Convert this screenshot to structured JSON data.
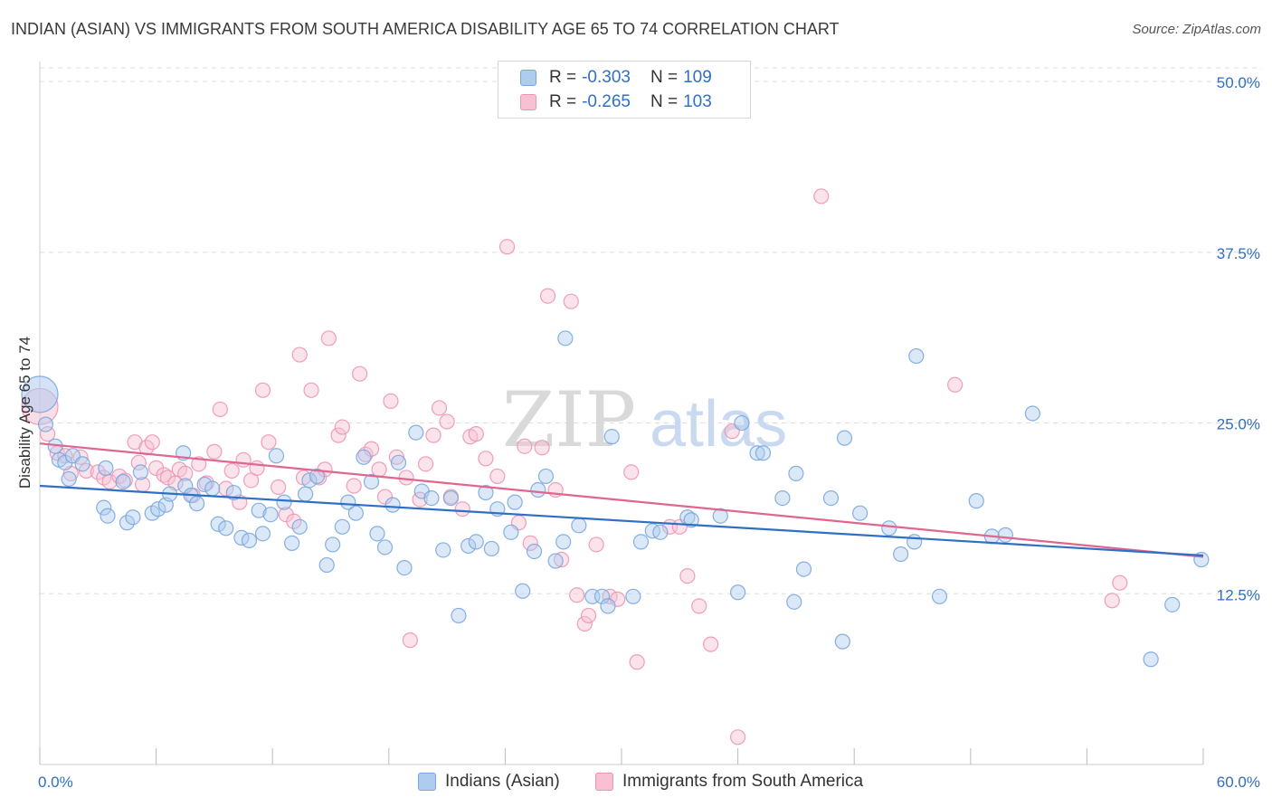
{
  "header": {
    "title": "INDIAN (ASIAN) VS IMMIGRANTS FROM SOUTH AMERICA DISABILITY AGE 65 TO 74 CORRELATION CHART",
    "source": "Source: ZipAtlas.com"
  },
  "legend": {
    "blue": {
      "r_label": "R =",
      "r_value": "-0.303",
      "n_label": "N =",
      "n_value": "109"
    },
    "pink": {
      "r_label": "R =",
      "r_value": "-0.265",
      "n_label": "N =",
      "n_value": "103"
    }
  },
  "bottom_legend": {
    "blue_label": "Indians (Asian)",
    "pink_label": "Immigrants from South America"
  },
  "watermark": {
    "zip": "ZIP",
    "atlas": "atlas"
  },
  "colors": {
    "blue_fill": "#aecbf0",
    "blue_stroke": "#7aa6dd",
    "blue_line": "#2f6fc4",
    "pink_fill": "#f7c1d3",
    "pink_stroke": "#ee93b3",
    "pink_line": "#e06690",
    "tick_label": "#2f6fc4",
    "grid": "#dddddd"
  },
  "chart_data": {
    "type": "scatter",
    "title": "INDIAN (ASIAN) VS IMMIGRANTS FROM SOUTH AMERICA DISABILITY AGE 65 TO 74 CORRELATION CHART",
    "xlabel": "",
    "ylabel": "Disability Age 65 to 74",
    "xlim": [
      0,
      60
    ],
    "ylim": [
      0,
      51
    ],
    "x_tick_labels": [
      "0.0%",
      "60.0%"
    ],
    "y_ticks": [
      12.5,
      25.0,
      37.5,
      50.0
    ],
    "y_tick_labels": [
      "12.5%",
      "25.0%",
      "37.5%",
      "50.0%"
    ],
    "grid": true,
    "legend_position": "top-center",
    "series": [
      {
        "name": "Indians (Asian)",
        "trend": {
          "x": [
            0,
            60
          ],
          "y": [
            20.4,
            15.3
          ]
        },
        "points": [
          [
            0,
            27.1
          ],
          [
            0.3,
            24.9
          ],
          [
            0.8,
            23.3
          ],
          [
            1.0,
            22.3
          ],
          [
            1.3,
            22.1
          ],
          [
            1.7,
            22.6
          ],
          [
            1.5,
            20.9
          ],
          [
            2.2,
            22.0
          ],
          [
            3.3,
            18.8
          ],
          [
            3.4,
            21.7
          ],
          [
            3.5,
            18.2
          ],
          [
            4.3,
            20.7
          ],
          [
            4.5,
            17.7
          ],
          [
            4.8,
            18.1
          ],
          [
            5.2,
            21.4
          ],
          [
            5.8,
            18.4
          ],
          [
            6.1,
            18.7
          ],
          [
            6.5,
            19.0
          ],
          [
            6.7,
            19.8
          ],
          [
            7.4,
            22.8
          ],
          [
            7.5,
            20.4
          ],
          [
            7.8,
            19.7
          ],
          [
            8.1,
            19.1
          ],
          [
            8.5,
            20.5
          ],
          [
            8.9,
            20.2
          ],
          [
            9.2,
            17.6
          ],
          [
            9.6,
            17.3
          ],
          [
            10.0,
            19.9
          ],
          [
            10.4,
            16.6
          ],
          [
            10.8,
            16.4
          ],
          [
            11.3,
            18.6
          ],
          [
            11.5,
            16.9
          ],
          [
            11.9,
            18.3
          ],
          [
            12.2,
            22.6
          ],
          [
            12.6,
            19.2
          ],
          [
            13.0,
            16.2
          ],
          [
            13.4,
            17.4
          ],
          [
            13.7,
            19.8
          ],
          [
            13.9,
            20.8
          ],
          [
            14.3,
            21.1
          ],
          [
            14.8,
            14.6
          ],
          [
            15.1,
            16.1
          ],
          [
            15.6,
            17.4
          ],
          [
            15.9,
            19.2
          ],
          [
            16.3,
            18.4
          ],
          [
            16.7,
            22.5
          ],
          [
            17.1,
            20.7
          ],
          [
            17.4,
            16.9
          ],
          [
            17.8,
            15.9
          ],
          [
            18.2,
            19.0
          ],
          [
            18.5,
            22.1
          ],
          [
            18.8,
            14.4
          ],
          [
            19.4,
            24.3
          ],
          [
            19.7,
            20.0
          ],
          [
            20.2,
            19.5
          ],
          [
            20.8,
            15.7
          ],
          [
            21.2,
            19.5
          ],
          [
            21.6,
            10.9
          ],
          [
            22.1,
            16.0
          ],
          [
            22.5,
            16.3
          ],
          [
            23.0,
            19.9
          ],
          [
            23.3,
            15.8
          ],
          [
            23.6,
            18.7
          ],
          [
            24.3,
            17.0
          ],
          [
            24.5,
            19.2
          ],
          [
            24.9,
            12.7
          ],
          [
            25.5,
            15.6
          ],
          [
            25.7,
            20.1
          ],
          [
            26.1,
            21.1
          ],
          [
            26.6,
            14.9
          ],
          [
            27.0,
            16.3
          ],
          [
            27.1,
            31.2
          ],
          [
            27.8,
            17.5
          ],
          [
            28.5,
            12.3
          ],
          [
            29.0,
            12.3
          ],
          [
            29.3,
            11.6
          ],
          [
            29.5,
            24.0
          ],
          [
            30.6,
            12.3
          ],
          [
            31.0,
            16.3
          ],
          [
            31.6,
            17.1
          ],
          [
            32.0,
            17.0
          ],
          [
            33.4,
            18.1
          ],
          [
            33.6,
            17.9
          ],
          [
            35.1,
            18.2
          ],
          [
            36.0,
            12.6
          ],
          [
            36.2,
            25.0
          ],
          [
            37.0,
            22.8
          ],
          [
            37.3,
            22.8
          ],
          [
            38.3,
            19.5
          ],
          [
            38.9,
            11.9
          ],
          [
            39.0,
            21.3
          ],
          [
            39.4,
            14.3
          ],
          [
            40.8,
            19.5
          ],
          [
            41.4,
            9.0
          ],
          [
            41.5,
            23.9
          ],
          [
            42.3,
            18.4
          ],
          [
            43.8,
            17.3
          ],
          [
            44.4,
            15.4
          ],
          [
            45.1,
            16.3
          ],
          [
            45.2,
            29.9
          ],
          [
            46.4,
            12.3
          ],
          [
            48.3,
            19.3
          ],
          [
            49.1,
            16.7
          ],
          [
            49.8,
            16.8
          ],
          [
            51.2,
            25.7
          ],
          [
            57.3,
            7.7
          ],
          [
            58.4,
            11.7
          ],
          [
            59.9,
            15.0
          ]
        ]
      },
      {
        "name": "Immigrants from South America",
        "trend": {
          "x": [
            0,
            60
          ],
          "y": [
            23.5,
            15.2
          ]
        },
        "points": [
          [
            0,
            26.2
          ],
          [
            0.4,
            24.2
          ],
          [
            0.9,
            22.8
          ],
          [
            1.3,
            22.6
          ],
          [
            1.6,
            21.3
          ],
          [
            2.1,
            22.5
          ],
          [
            2.4,
            21.5
          ],
          [
            3.0,
            21.4
          ],
          [
            3.3,
            21.0
          ],
          [
            3.6,
            20.7
          ],
          [
            4.1,
            21.1
          ],
          [
            4.4,
            20.8
          ],
          [
            4.9,
            23.6
          ],
          [
            5.1,
            22.1
          ],
          [
            5.3,
            20.5
          ],
          [
            5.5,
            23.2
          ],
          [
            5.8,
            23.6
          ],
          [
            6.0,
            21.7
          ],
          [
            6.4,
            21.2
          ],
          [
            6.6,
            21.0
          ],
          [
            7.0,
            20.6
          ],
          [
            7.2,
            21.6
          ],
          [
            7.5,
            21.3
          ],
          [
            7.9,
            19.7
          ],
          [
            8.2,
            22.0
          ],
          [
            8.6,
            20.6
          ],
          [
            9.0,
            22.9
          ],
          [
            9.3,
            26.0
          ],
          [
            9.6,
            20.2
          ],
          [
            9.9,
            21.5
          ],
          [
            10.3,
            19.2
          ],
          [
            10.5,
            22.3
          ],
          [
            10.9,
            20.8
          ],
          [
            11.2,
            21.7
          ],
          [
            11.5,
            27.4
          ],
          [
            11.8,
            23.6
          ],
          [
            12.3,
            20.3
          ],
          [
            12.7,
            18.3
          ],
          [
            13.1,
            17.8
          ],
          [
            13.4,
            30.0
          ],
          [
            13.6,
            21.0
          ],
          [
            14.0,
            27.4
          ],
          [
            14.4,
            21.0
          ],
          [
            14.7,
            21.6
          ],
          [
            14.9,
            31.2
          ],
          [
            15.4,
            24.1
          ],
          [
            15.6,
            24.7
          ],
          [
            16.2,
            20.4
          ],
          [
            16.5,
            28.6
          ],
          [
            16.8,
            22.7
          ],
          [
            17.1,
            23.1
          ],
          [
            17.5,
            21.6
          ],
          [
            17.8,
            19.6
          ],
          [
            18.1,
            26.6
          ],
          [
            18.4,
            22.5
          ],
          [
            18.9,
            21.0
          ],
          [
            19.1,
            9.1
          ],
          [
            19.6,
            19.4
          ],
          [
            19.9,
            22.0
          ],
          [
            20.3,
            24.1
          ],
          [
            20.6,
            26.1
          ],
          [
            21.0,
            25.1
          ],
          [
            21.2,
            19.6
          ],
          [
            21.8,
            18.7
          ],
          [
            22.2,
            24.0
          ],
          [
            22.5,
            24.2
          ],
          [
            23.0,
            22.4
          ],
          [
            23.6,
            21.1
          ],
          [
            24.1,
            37.9
          ],
          [
            24.7,
            17.7
          ],
          [
            25.0,
            23.3
          ],
          [
            25.3,
            16.2
          ],
          [
            25.9,
            23.2
          ],
          [
            26.2,
            34.3
          ],
          [
            26.6,
            20.1
          ],
          [
            26.9,
            15.0
          ],
          [
            27.4,
            33.9
          ],
          [
            27.7,
            12.4
          ],
          [
            28.1,
            10.3
          ],
          [
            28.3,
            10.9
          ],
          [
            28.7,
            16.1
          ],
          [
            29.4,
            12.3
          ],
          [
            29.8,
            12.1
          ],
          [
            30.5,
            21.4
          ],
          [
            30.8,
            7.5
          ],
          [
            32.5,
            17.4
          ],
          [
            33.0,
            17.4
          ],
          [
            33.4,
            13.8
          ],
          [
            34.0,
            11.6
          ],
          [
            34.6,
            8.8
          ],
          [
            35.7,
            24.4
          ],
          [
            36.0,
            2.0
          ],
          [
            40.3,
            41.6
          ],
          [
            47.2,
            27.8
          ],
          [
            55.3,
            12.0
          ],
          [
            55.7,
            13.3
          ]
        ]
      }
    ]
  }
}
